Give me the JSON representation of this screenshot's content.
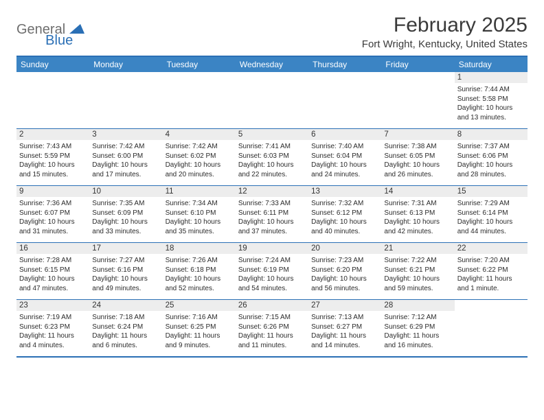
{
  "brand": {
    "word1": "General",
    "word2": "Blue",
    "color1": "#6e6e6e",
    "color2": "#2a6fb5"
  },
  "title": "February 2025",
  "location": "Fort Wright, Kentucky, United States",
  "colors": {
    "header_bg": "#3b84c4",
    "border": "#2a6fb5",
    "daynum_bg": "#ededed",
    "text": "#2b2b2b"
  },
  "day_names": [
    "Sunday",
    "Monday",
    "Tuesday",
    "Wednesday",
    "Thursday",
    "Friday",
    "Saturday"
  ],
  "first_weekday": 6,
  "days": [
    {
      "n": 1,
      "sunrise": "7:44 AM",
      "sunset": "5:58 PM",
      "daylight": "10 hours and 13 minutes."
    },
    {
      "n": 2,
      "sunrise": "7:43 AM",
      "sunset": "5:59 PM",
      "daylight": "10 hours and 15 minutes."
    },
    {
      "n": 3,
      "sunrise": "7:42 AM",
      "sunset": "6:00 PM",
      "daylight": "10 hours and 17 minutes."
    },
    {
      "n": 4,
      "sunrise": "7:42 AM",
      "sunset": "6:02 PM",
      "daylight": "10 hours and 20 minutes."
    },
    {
      "n": 5,
      "sunrise": "7:41 AM",
      "sunset": "6:03 PM",
      "daylight": "10 hours and 22 minutes."
    },
    {
      "n": 6,
      "sunrise": "7:40 AM",
      "sunset": "6:04 PM",
      "daylight": "10 hours and 24 minutes."
    },
    {
      "n": 7,
      "sunrise": "7:38 AM",
      "sunset": "6:05 PM",
      "daylight": "10 hours and 26 minutes."
    },
    {
      "n": 8,
      "sunrise": "7:37 AM",
      "sunset": "6:06 PM",
      "daylight": "10 hours and 28 minutes."
    },
    {
      "n": 9,
      "sunrise": "7:36 AM",
      "sunset": "6:07 PM",
      "daylight": "10 hours and 31 minutes."
    },
    {
      "n": 10,
      "sunrise": "7:35 AM",
      "sunset": "6:09 PM",
      "daylight": "10 hours and 33 minutes."
    },
    {
      "n": 11,
      "sunrise": "7:34 AM",
      "sunset": "6:10 PM",
      "daylight": "10 hours and 35 minutes."
    },
    {
      "n": 12,
      "sunrise": "7:33 AM",
      "sunset": "6:11 PM",
      "daylight": "10 hours and 37 minutes."
    },
    {
      "n": 13,
      "sunrise": "7:32 AM",
      "sunset": "6:12 PM",
      "daylight": "10 hours and 40 minutes."
    },
    {
      "n": 14,
      "sunrise": "7:31 AM",
      "sunset": "6:13 PM",
      "daylight": "10 hours and 42 minutes."
    },
    {
      "n": 15,
      "sunrise": "7:29 AM",
      "sunset": "6:14 PM",
      "daylight": "10 hours and 44 minutes."
    },
    {
      "n": 16,
      "sunrise": "7:28 AM",
      "sunset": "6:15 PM",
      "daylight": "10 hours and 47 minutes."
    },
    {
      "n": 17,
      "sunrise": "7:27 AM",
      "sunset": "6:16 PM",
      "daylight": "10 hours and 49 minutes."
    },
    {
      "n": 18,
      "sunrise": "7:26 AM",
      "sunset": "6:18 PM",
      "daylight": "10 hours and 52 minutes."
    },
    {
      "n": 19,
      "sunrise": "7:24 AM",
      "sunset": "6:19 PM",
      "daylight": "10 hours and 54 minutes."
    },
    {
      "n": 20,
      "sunrise": "7:23 AM",
      "sunset": "6:20 PM",
      "daylight": "10 hours and 56 minutes."
    },
    {
      "n": 21,
      "sunrise": "7:22 AM",
      "sunset": "6:21 PM",
      "daylight": "10 hours and 59 minutes."
    },
    {
      "n": 22,
      "sunrise": "7:20 AM",
      "sunset": "6:22 PM",
      "daylight": "11 hours and 1 minute."
    },
    {
      "n": 23,
      "sunrise": "7:19 AM",
      "sunset": "6:23 PM",
      "daylight": "11 hours and 4 minutes."
    },
    {
      "n": 24,
      "sunrise": "7:18 AM",
      "sunset": "6:24 PM",
      "daylight": "11 hours and 6 minutes."
    },
    {
      "n": 25,
      "sunrise": "7:16 AM",
      "sunset": "6:25 PM",
      "daylight": "11 hours and 9 minutes."
    },
    {
      "n": 26,
      "sunrise": "7:15 AM",
      "sunset": "6:26 PM",
      "daylight": "11 hours and 11 minutes."
    },
    {
      "n": 27,
      "sunrise": "7:13 AM",
      "sunset": "6:27 PM",
      "daylight": "11 hours and 14 minutes."
    },
    {
      "n": 28,
      "sunrise": "7:12 AM",
      "sunset": "6:29 PM",
      "daylight": "11 hours and 16 minutes."
    }
  ],
  "labels": {
    "sunrise": "Sunrise:",
    "sunset": "Sunset:",
    "daylight": "Daylight:"
  }
}
